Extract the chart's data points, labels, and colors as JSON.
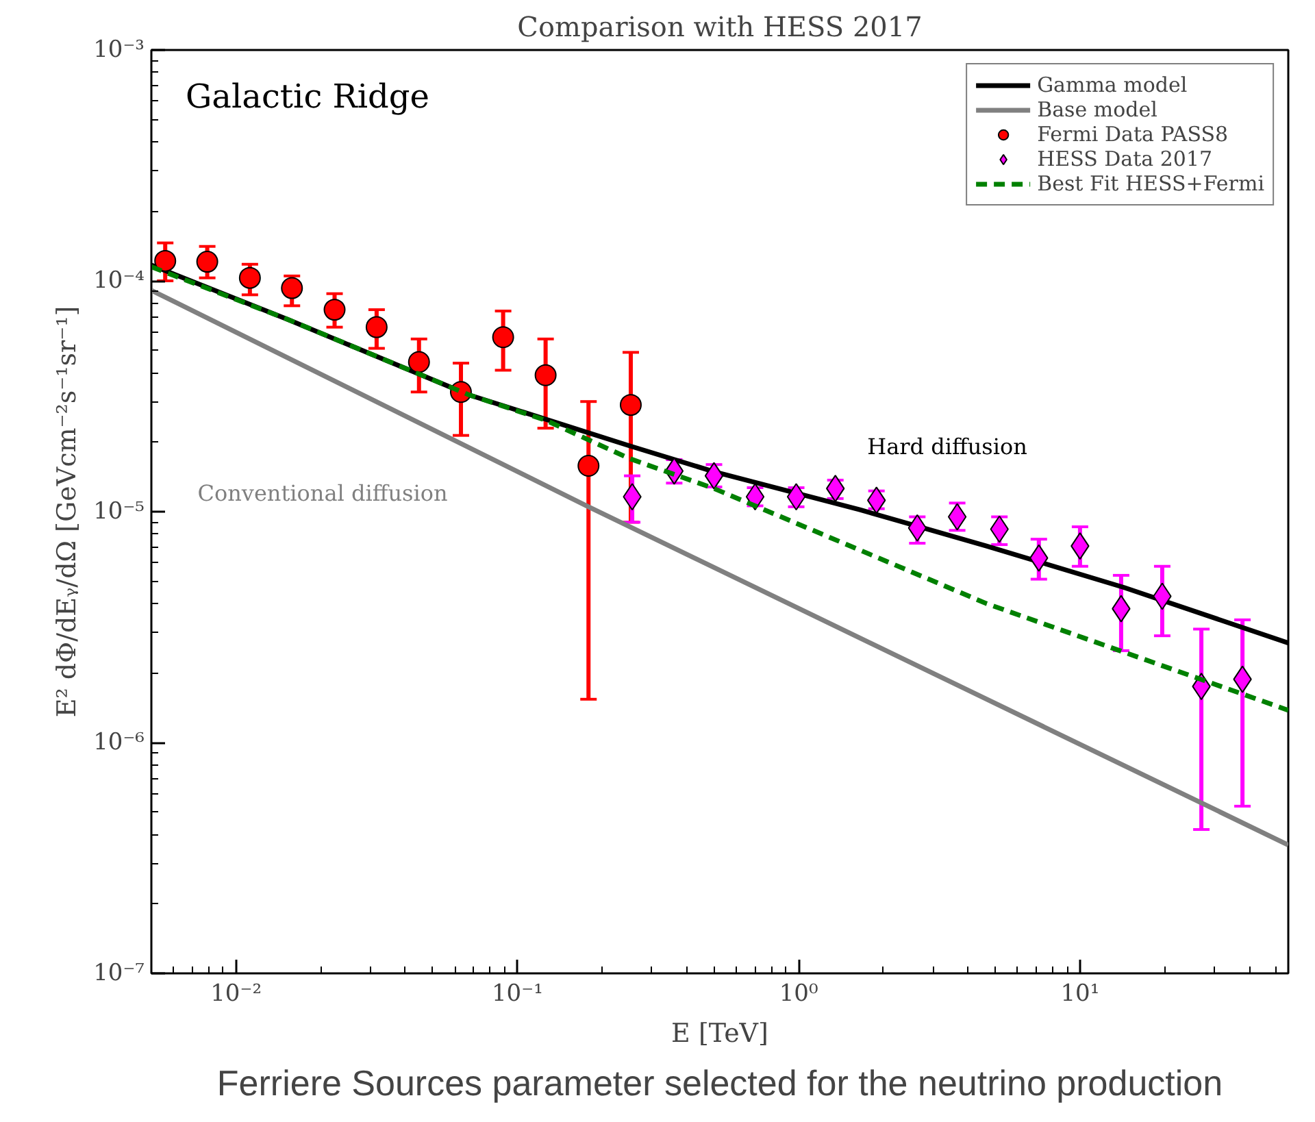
{
  "chart_data": {
    "type": "line",
    "title": "Comparison with HESS 2017",
    "xlabel": "E [TeV]",
    "ylabel": "E² dΦ/dEᵧ/dΩ [GeVcm⁻²s⁻¹sr⁻¹]",
    "log": "xy",
    "xlim": [
      0.005,
      55
    ],
    "ylim": [
      1e-07,
      0.001
    ],
    "xticks": [
      {
        "value": 0.01,
        "label": "10⁻²"
      },
      {
        "value": 0.1,
        "label": "10⁻¹"
      },
      {
        "value": 1,
        "label": "10⁰"
      },
      {
        "value": 10,
        "label": "10¹"
      }
    ],
    "yticks": [
      {
        "value": 1e-07,
        "label": "10⁻⁷"
      },
      {
        "value": 1e-06,
        "label": "10⁻⁶"
      },
      {
        "value": 1e-05,
        "label": "10⁻⁵"
      },
      {
        "value": 0.0001,
        "label": "10⁻⁴"
      },
      {
        "value": 0.001,
        "label": "10⁻³"
      }
    ],
    "grid": false,
    "legend": "top right",
    "annotations": [
      "Galactic Ridge",
      "Hard diffusion",
      "Conventional diffusion",
      "Ferriere Sources parameter selected for the neutrino production"
    ],
    "series": [
      {
        "name": "Gamma model",
        "color": "#000000",
        "line_style": "solid",
        "x": [
          0.005,
          0.0153,
          0.0676,
          0.25,
          0.5,
          1.65,
          4.65,
          14.3,
          55
        ],
        "values": [
          0.000117,
          6.8e-05,
          3.2e-05,
          1.93e-05,
          1.49e-05,
          1.02e-05,
          7.1e-06,
          4.7e-06,
          2.7e-06
        ]
      },
      {
        "name": "Base model",
        "color": "#808080",
        "line_style": "solid",
        "x": [
          0.005,
          0.179,
          55
        ],
        "values": [
          9.1e-05,
          1.05e-05,
          3.6e-07
        ]
      },
      {
        "name": "Fermi Data PASS8",
        "type": "scatter",
        "marker": "circle",
        "color": "#ff0000",
        "x": [
          0.0056,
          0.0079,
          0.0112,
          0.0158,
          0.0224,
          0.0316,
          0.0447,
          0.063,
          0.089,
          0.126,
          0.179,
          0.253
        ],
        "values": [
          0.000122,
          0.000121,
          0.000103,
          9.3e-05,
          7.5e-05,
          6.3e-05,
          4.45e-05,
          3.3e-05,
          5.7e-05,
          3.9e-05,
          1.58e-05,
          2.9e-05
        ],
        "errors": [
          [
            0.0001,
            0.000146
          ],
          [
            0.000103,
            0.000141
          ],
          [
            8.7e-05,
            0.000118
          ],
          [
            7.8e-05,
            0.000105
          ],
          [
            6.3e-05,
            8.8e-05
          ],
          [
            5.1e-05,
            7.5e-05
          ],
          [
            3.3e-05,
            5.6e-05
          ],
          [
            2.14e-05,
            4.4e-05
          ],
          [
            4.1e-05,
            7.4e-05
          ],
          [
            2.3e-05,
            5.6e-05
          ],
          [
            1.54e-06,
            3e-05
          ],
          [
            9e-06,
            4.9e-05
          ]
        ]
      },
      {
        "name": "HESS Data 2017",
        "type": "scatter",
        "marker": "diamond",
        "color": "#ff00ff",
        "x": [
          0.256,
          0.361,
          0.5,
          0.7,
          0.98,
          1.35,
          1.89,
          2.64,
          3.66,
          5.17,
          7.14,
          10.0,
          14.0,
          19.6,
          27.0,
          37.8
        ],
        "values": [
          1.16e-05,
          1.5e-05,
          1.43e-05,
          1.16e-05,
          1.16e-05,
          1.26e-05,
          1.12e-05,
          8.5e-06,
          9.5e-06,
          8.4e-06,
          6.3e-06,
          7.1e-06,
          3.8e-06,
          4.3e-06,
          1.75e-06,
          1.88e-06
        ],
        "errors": [
          [
            9e-06,
            1.43e-05
          ],
          [
            1.33e-05,
            1.68e-05
          ],
          [
            1.28e-05,
            1.6e-05
          ],
          [
            1.06e-05,
            1.27e-05
          ],
          [
            1.05e-05,
            1.27e-05
          ],
          [
            1.14e-05,
            1.37e-05
          ],
          [
            1.03e-05,
            1.23e-05
          ],
          [
            7.3e-06,
            9.5e-06
          ],
          [
            8.3e-06,
            1.09e-05
          ],
          [
            7.2e-06,
            9.5e-06
          ],
          [
            5.1e-06,
            7.6e-06
          ],
          [
            5.8e-06,
            8.6e-06
          ],
          [
            2.5e-06,
            5.3e-06
          ],
          [
            2.9e-06,
            5.8e-06
          ],
          [
            4.2e-07,
            3.1e-06
          ],
          [
            5.3e-07,
            3.4e-06
          ]
        ]
      },
      {
        "name": "Best Fit HESS+Fermi",
        "color": "#008000",
        "line_style": "dashed",
        "x": [
          0.005,
          0.0153,
          0.0676,
          0.126,
          0.25,
          0.5,
          4.65,
          55
        ],
        "values": [
          0.000115,
          6.8e-05,
          3.2e-05,
          2.49e-05,
          1.7e-05,
          1.26e-05,
          4e-06,
          1.38e-06
        ]
      }
    ]
  }
}
